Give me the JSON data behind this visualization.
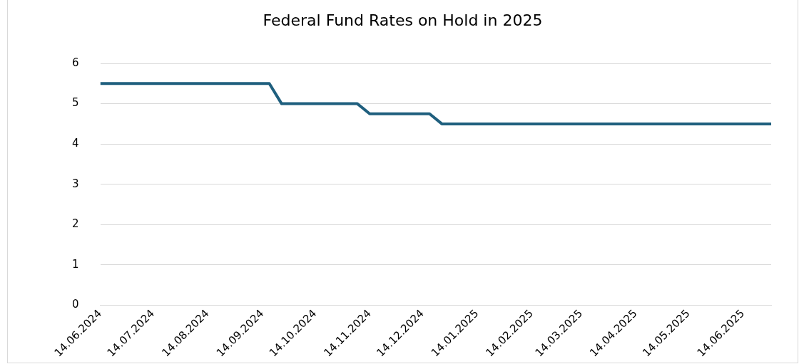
{
  "chart_data": {
    "type": "line",
    "title": "Federal Fund Rates on Hold in 2025",
    "x": [
      "2024-06-14",
      "2024-09-18",
      "2024-09-25",
      "2024-11-07",
      "2024-11-14",
      "2024-12-18",
      "2024-12-25",
      "2025-06-30"
    ],
    "series": [
      {
        "color": "#1f5f7e",
        "values": [
          5.5,
          5.5,
          5.0,
          5.0,
          4.75,
          4.75,
          4.5,
          4.5
        ]
      }
    ],
    "xlim": [
      "2024-06-14",
      "2025-06-30"
    ],
    "xticks": [
      {
        "value": "2024-06-14",
        "label": "14.06.2024"
      },
      {
        "value": "2024-07-14",
        "label": "14.07.2024"
      },
      {
        "value": "2024-08-14",
        "label": "14.08.2024"
      },
      {
        "value": "2024-09-14",
        "label": "14.09.2024"
      },
      {
        "value": "2024-10-14",
        "label": "14.10.2024"
      },
      {
        "value": "2024-11-14",
        "label": "14.11.2024"
      },
      {
        "value": "2024-12-14",
        "label": "14.12.2024"
      },
      {
        "value": "2025-01-14",
        "label": "14.01.2025"
      },
      {
        "value": "2025-02-14",
        "label": "14.02.2025"
      },
      {
        "value": "2025-03-14",
        "label": "14.03.2025"
      },
      {
        "value": "2025-04-14",
        "label": "14.04.2025"
      },
      {
        "value": "2025-05-14",
        "label": "14.05.2025"
      },
      {
        "value": "2025-06-14",
        "label": "14.06.2025"
      }
    ],
    "ylim": [
      0,
      6
    ],
    "yticks": [
      0,
      1,
      2,
      3,
      4,
      5,
      6
    ],
    "grid": "y",
    "legend": false,
    "marker": "none",
    "line_style": "solid"
  }
}
